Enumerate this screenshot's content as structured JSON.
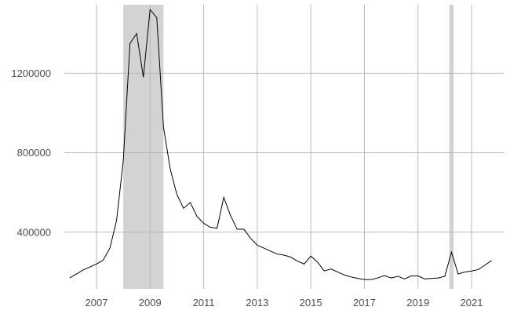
{
  "chart_data": {
    "type": "line",
    "title": "",
    "xlabel": "",
    "ylabel": "",
    "xlim": [
      2005.8,
      2022.2
    ],
    "ylim": [
      115000,
      1545000
    ],
    "grid": true,
    "legend": "none",
    "x_ticks": [
      2007,
      2009,
      2011,
      2013,
      2015,
      2017,
      2019,
      2021
    ],
    "x_tick_labels": [
      "2007",
      "2009",
      "2011",
      "2013",
      "2015",
      "2017",
      "2019",
      "2021"
    ],
    "y_ticks": [
      400000,
      800000,
      1200000
    ],
    "y_tick_labels": [
      "400000",
      "800000",
      "1200000"
    ],
    "colors": {
      "line": "#000000",
      "shade": "#d3d3d3",
      "grid": "#b3b3b3",
      "tick_text": "#4d4d4d"
    },
    "shaded_regions": [
      {
        "x_start": 2008.0,
        "x_end": 2009.5
      },
      {
        "x_start": 2020.17,
        "x_end": 2020.33
      }
    ],
    "series": [
      {
        "x": [
          2006.0,
          2006.25,
          2006.5,
          2006.75,
          2007.0,
          2007.25,
          2007.5,
          2007.75,
          2008.0,
          2008.25,
          2008.5,
          2008.75,
          2009.0,
          2009.25,
          2009.5,
          2009.75,
          2010.0,
          2010.25,
          2010.5,
          2010.75,
          2011.0,
          2011.25,
          2011.5,
          2011.75,
          2012.0,
          2012.25,
          2012.5,
          2012.75,
          2013.0,
          2013.25,
          2013.5,
          2013.75,
          2014.0,
          2014.25,
          2014.5,
          2014.75,
          2015.0,
          2015.25,
          2015.5,
          2015.75,
          2016.0,
          2016.25,
          2016.5,
          2016.75,
          2017.0,
          2017.25,
          2017.5,
          2017.75,
          2018.0,
          2018.25,
          2018.5,
          2018.75,
          2019.0,
          2019.25,
          2019.5,
          2019.75,
          2020.0,
          2020.25,
          2020.5,
          2020.75,
          2021.0,
          2021.25,
          2021.5,
          2021.75
        ],
        "values": [
          170000,
          190000,
          210000,
          225000,
          240000,
          260000,
          320000,
          460000,
          760000,
          1350000,
          1400000,
          1180000,
          1520000,
          1480000,
          930000,
          720000,
          590000,
          520000,
          550000,
          480000,
          445000,
          425000,
          420000,
          575000,
          485000,
          415000,
          415000,
          370000,
          335000,
          320000,
          305000,
          290000,
          285000,
          275000,
          255000,
          240000,
          280000,
          250000,
          205000,
          215000,
          200000,
          185000,
          175000,
          168000,
          162000,
          162000,
          170000,
          182000,
          170000,
          178000,
          165000,
          180000,
          180000,
          165000,
          168000,
          170000,
          178000,
          300000,
          190000,
          200000,
          205000,
          212000,
          235000,
          258000
        ]
      }
    ]
  }
}
